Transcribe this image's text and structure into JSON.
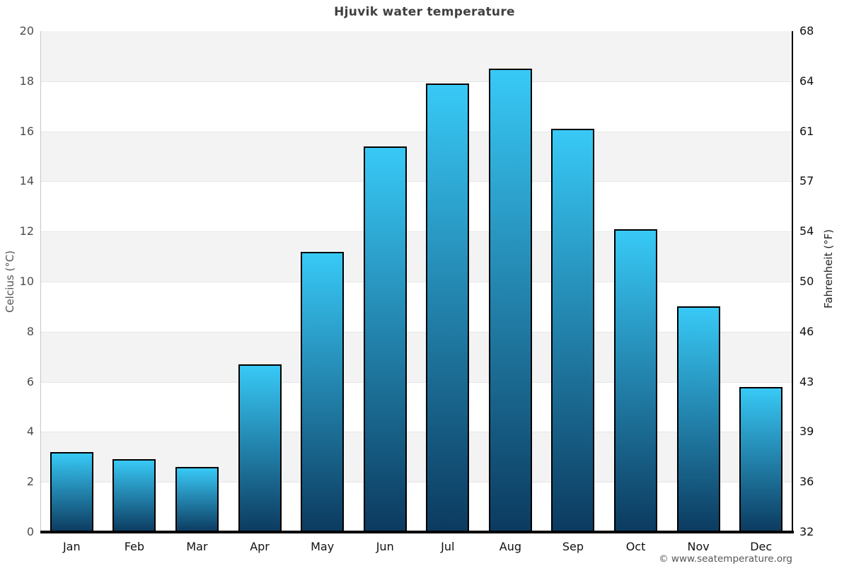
{
  "chart_data": {
    "type": "bar",
    "title": "Hjuvik water temperature",
    "categories": [
      "Jan",
      "Feb",
      "Mar",
      "Apr",
      "May",
      "Jun",
      "Jul",
      "Aug",
      "Sep",
      "Oct",
      "Nov",
      "Dec"
    ],
    "values": [
      3.2,
      2.9,
      2.6,
      6.7,
      11.2,
      15.4,
      17.9,
      18.5,
      16.1,
      12.1,
      9.0,
      5.8
    ],
    "xlabel": "",
    "ylabel_left": "Celcius (°C)",
    "ylabel_right": "Fahrenheit (°F)",
    "ylim": [
      0,
      20
    ],
    "yticks_celsius": [
      0,
      2,
      4,
      6,
      8,
      10,
      12,
      14,
      16,
      18,
      20
    ],
    "yticks_fahrenheit": [
      "32",
      "36",
      "39",
      "43",
      "46",
      "50",
      "54",
      "57",
      "61",
      "64",
      "68"
    ],
    "grid": "alternating-horizontal-bands",
    "legend": "none",
    "colors": {
      "bar_gradient_top": "#38c9f6",
      "bar_gradient_bottom": "#0c3a5f",
      "bar_border": "#000000",
      "band_gray": "#f3f3f3",
      "band_white": "#ffffff"
    }
  },
  "footer": {
    "copyright": "© www.seatemperature.org"
  }
}
